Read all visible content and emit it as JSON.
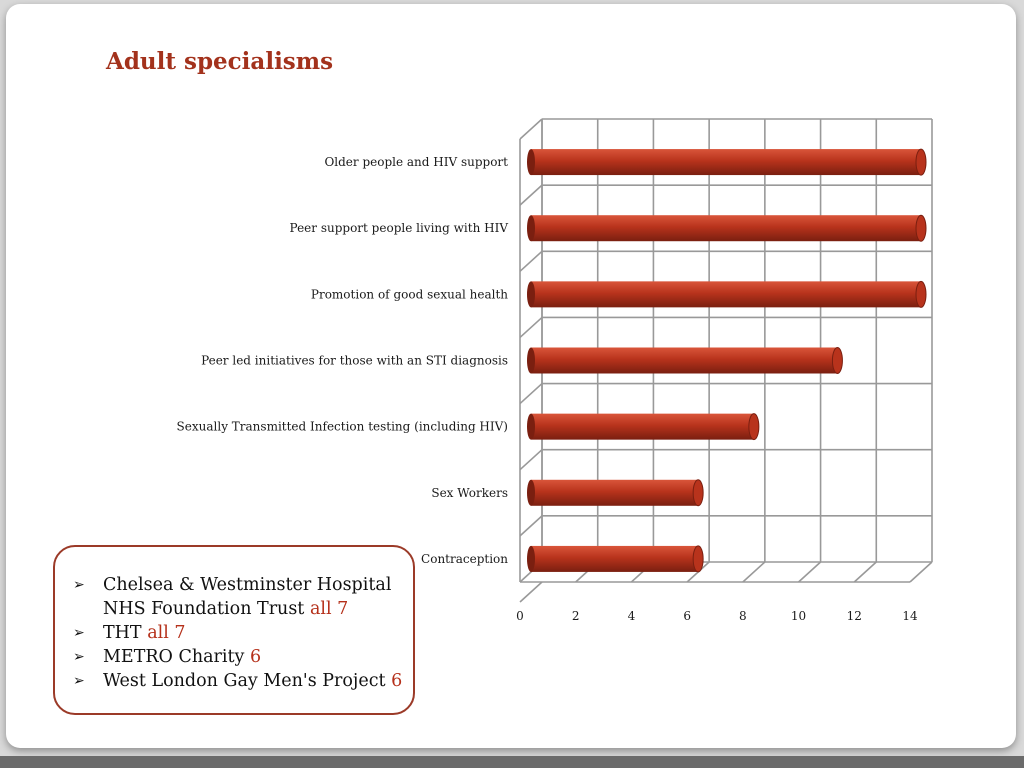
{
  "slide": {
    "title": "Adult specialisms"
  },
  "colors": {
    "bar": "#b8331c",
    "bar_dark": "#7a1f10",
    "bar_light": "#d9553a",
    "grid": "#999999",
    "title": "#a3321c",
    "accent": "#b5301a"
  },
  "chart_data": {
    "type": "bar",
    "orientation": "horizontal",
    "style": "3d-cylinder",
    "categories": [
      "Older people and HIV support",
      "Peer support people living with HIV",
      "Promotion of good sexual health",
      "Peer led initiatives for those with an STI diagnosis",
      "Sexually Transmitted Infection testing (including HIV)",
      "Sex Workers",
      "Contraception"
    ],
    "values": [
      14,
      14,
      14,
      11,
      8,
      6,
      6
    ],
    "xlim": [
      0,
      14
    ],
    "xticks": [
      "0",
      "2",
      "4",
      "6",
      "8",
      "10",
      "12",
      "14"
    ],
    "grid": true,
    "legend": "none"
  },
  "callout": {
    "items": [
      {
        "name": "Chelsea & Westminster Hospital NHS Foundation Trust",
        "line1": "Chelsea & Westminster Hospital",
        "line2": "NHS Foundation Trust",
        "count": "all 7"
      },
      {
        "name": "THT",
        "count": "all 7"
      },
      {
        "name": "METRO Charity",
        "count": "6"
      },
      {
        "name": "West London Gay Men's Project",
        "count": "6"
      }
    ]
  }
}
